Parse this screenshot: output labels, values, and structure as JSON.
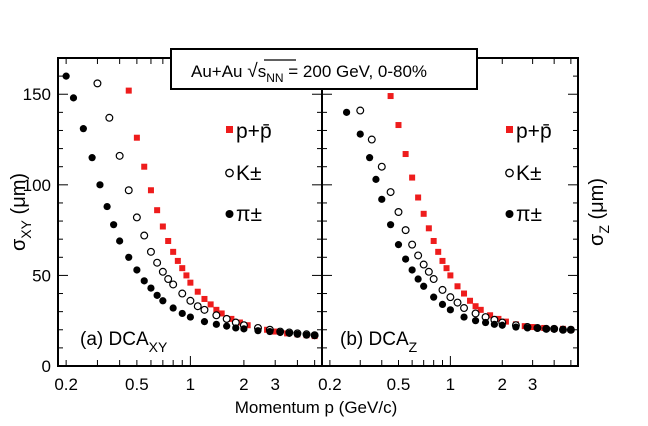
{
  "colors": {
    "pion": "#000000",
    "kaon": "#000000",
    "proton": "#ee1c1c",
    "frame": "#000000",
    "background": "#ffffff"
  },
  "header": {
    "prefix": "Au+Au ",
    "sqrt_sub": "NN",
    "suffix": " = 200 GeV, 0-80%"
  },
  "x_axis": {
    "label": "Momentum p (GeV/c)",
    "ticklabels": [
      {
        "text": "0.2",
        "value": 0.2
      },
      {
        "text": "0.5",
        "value": 0.5
      },
      {
        "text": "1",
        "value": 1
      },
      {
        "text": "2",
        "value": 2
      },
      {
        "text": "3",
        "value": 3
      }
    ]
  },
  "y_left": {
    "label_main": "σ",
    "label_sub": "XY",
    "label_unit": " (μm)",
    "ticklabels": [
      {
        "text": "0",
        "value": 0
      },
      {
        "text": "50",
        "value": 50
      },
      {
        "text": "100",
        "value": 100
      },
      {
        "text": "150",
        "value": 150
      }
    ]
  },
  "y_right": {
    "label_main": "σ",
    "label_sub": "Z",
    "label_unit": " (μm)"
  },
  "chart_data": [
    {
      "type": "scatter",
      "panel_label": "(a) DCA",
      "panel_label_sub": "XY",
      "xscale": "log",
      "xlim": [
        0.18,
        5.5
      ],
      "ylim": [
        0,
        170
      ],
      "grid": false,
      "legend_placement": "top-right",
      "series": [
        {
          "name": "p+p̄",
          "key": "proton",
          "marker": "filled-square",
          "x": [
            0.45,
            0.5,
            0.55,
            0.6,
            0.65,
            0.7,
            0.75,
            0.8,
            0.85,
            0.9,
            0.95,
            1.0,
            1.1,
            1.2,
            1.3,
            1.4,
            1.5,
            1.7,
            1.9,
            2.1,
            2.4,
            2.7,
            3.0,
            3.5,
            4.0,
            4.5,
            5.0
          ],
          "y": [
            152,
            126,
            110,
            97,
            86,
            77,
            69,
            63,
            58,
            54,
            50,
            46,
            41,
            37,
            34,
            31,
            29,
            26,
            24,
            22.5,
            21,
            20,
            19,
            18,
            17.5,
            17,
            16.5
          ]
        },
        {
          "name": "K±",
          "key": "kaon",
          "marker": "open-circle",
          "x": [
            0.3,
            0.35,
            0.4,
            0.45,
            0.5,
            0.55,
            0.6,
            0.65,
            0.7,
            0.75,
            0.8,
            0.9,
            1.0,
            1.1,
            1.2,
            1.4,
            1.6,
            1.8,
            2.0,
            2.4,
            2.8,
            3.2,
            3.6,
            4.0,
            4.5,
            5.0
          ],
          "y": [
            156,
            137,
            116,
            97,
            82,
            72,
            63,
            57,
            52,
            48,
            45,
            40,
            36,
            33,
            31,
            28,
            26,
            24,
            22.5,
            21,
            20,
            19,
            18.5,
            18,
            17.5,
            17
          ]
        },
        {
          "name": "π±",
          "key": "pion",
          "marker": "filled-circle",
          "x": [
            0.2,
            0.22,
            0.25,
            0.28,
            0.31,
            0.34,
            0.37,
            0.4,
            0.45,
            0.5,
            0.55,
            0.6,
            0.65,
            0.7,
            0.8,
            0.9,
            1.0,
            1.2,
            1.4,
            1.6,
            1.8,
            2.0,
            2.4,
            2.8,
            3.2,
            3.6,
            4.0,
            4.5,
            5.0
          ],
          "y": [
            160,
            148,
            131,
            115,
            100,
            88,
            78,
            69,
            60,
            53,
            47,
            43,
            39,
            36,
            32,
            29,
            27,
            24.5,
            23,
            22,
            21,
            20.5,
            19.5,
            19,
            18.5,
            18,
            17.5,
            17,
            16.8
          ]
        }
      ]
    },
    {
      "type": "scatter",
      "panel_label": "(b) DCA",
      "panel_label_sub": "Z",
      "xscale": "log",
      "xlim": [
        0.18,
        5.5
      ],
      "ylim": [
        0,
        170
      ],
      "grid": false,
      "legend_placement": "top-right",
      "series": [
        {
          "name": "p+p̄",
          "key": "proton",
          "marker": "filled-square",
          "x": [
            0.45,
            0.5,
            0.55,
            0.6,
            0.65,
            0.7,
            0.75,
            0.8,
            0.85,
            0.9,
            0.95,
            1.0,
            1.1,
            1.2,
            1.3,
            1.4,
            1.5,
            1.7,
            1.9,
            2.1,
            2.4,
            2.7,
            3.0,
            3.5,
            4.0,
            4.5,
            5.0
          ],
          "y": [
            149,
            133,
            117,
            104,
            93,
            84,
            76,
            69,
            63,
            58,
            54,
            50,
            44,
            40,
            36,
            33,
            31,
            28,
            26,
            24.5,
            23,
            22,
            21.5,
            21,
            20.5,
            20.5,
            20
          ]
        },
        {
          "name": "K±",
          "key": "kaon",
          "marker": "open-circle",
          "x": [
            0.3,
            0.35,
            0.4,
            0.45,
            0.5,
            0.55,
            0.6,
            0.65,
            0.7,
            0.75,
            0.8,
            0.9,
            1.0,
            1.1,
            1.2,
            1.4,
            1.6,
            1.8,
            2.0,
            2.4,
            2.8,
            3.2,
            3.6,
            4.0,
            4.5,
            5.0
          ],
          "y": [
            141,
            125,
            110,
            96,
            85,
            75,
            67,
            61,
            56,
            52,
            48,
            42,
            38,
            35,
            32,
            29,
            27,
            25.5,
            24,
            22.5,
            21.5,
            21,
            20.5,
            20.5,
            20,
            20
          ]
        },
        {
          "name": "π±",
          "key": "pion",
          "marker": "filled-circle",
          "x": [
            0.25,
            0.3,
            0.34,
            0.37,
            0.4,
            0.45,
            0.5,
            0.55,
            0.6,
            0.65,
            0.7,
            0.8,
            0.9,
            1.0,
            1.2,
            1.4,
            1.6,
            1.8,
            2.0,
            2.4,
            2.8,
            3.2,
            3.6,
            4.0,
            4.5,
            5.0
          ],
          "y": [
            140,
            128,
            115,
            103,
            92,
            78,
            67,
            59,
            53,
            48,
            44,
            38,
            34,
            31,
            27,
            25,
            24,
            23,
            22.5,
            21.5,
            21,
            20.8,
            20.5,
            20.3,
            20.2,
            20
          ]
        }
      ]
    }
  ]
}
